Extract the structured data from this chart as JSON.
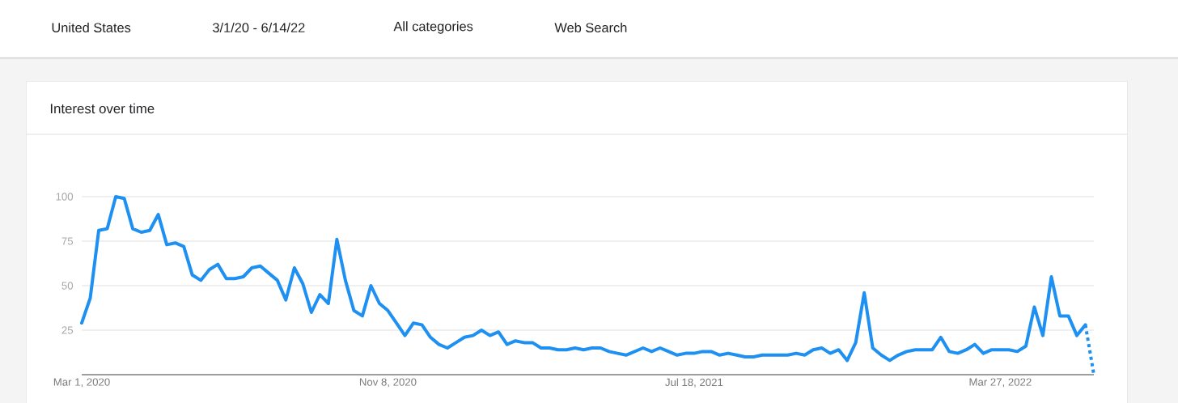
{
  "chart_data": {
    "type": "line",
    "title": "Interest over time",
    "annotations": [
      "United States",
      "3/1/20 - 6/14/22",
      "All categories",
      "Web Search"
    ],
    "x": [
      "2020-03-01",
      "2020-03-08",
      "2020-03-15",
      "2020-03-22",
      "2020-03-29",
      "2020-04-05",
      "2020-04-12",
      "2020-04-19",
      "2020-04-26",
      "2020-05-03",
      "2020-05-10",
      "2020-05-17",
      "2020-05-24",
      "2020-05-31",
      "2020-06-07",
      "2020-06-14",
      "2020-06-21",
      "2020-06-28",
      "2020-07-05",
      "2020-07-12",
      "2020-07-19",
      "2020-07-26",
      "2020-08-02",
      "2020-08-09",
      "2020-08-16",
      "2020-08-23",
      "2020-08-30",
      "2020-09-06",
      "2020-09-13",
      "2020-09-20",
      "2020-09-27",
      "2020-10-04",
      "2020-10-11",
      "2020-10-18",
      "2020-10-25",
      "2020-11-01",
      "2020-11-08",
      "2020-11-15",
      "2020-11-22",
      "2020-11-29",
      "2020-12-06",
      "2020-12-13",
      "2020-12-20",
      "2020-12-27",
      "2021-01-03",
      "2021-01-10",
      "2021-01-17",
      "2021-01-24",
      "2021-01-31",
      "2021-02-07",
      "2021-02-14",
      "2021-02-21",
      "2021-02-28",
      "2021-03-07",
      "2021-03-14",
      "2021-03-21",
      "2021-03-28",
      "2021-04-04",
      "2021-04-11",
      "2021-04-18",
      "2021-04-25",
      "2021-05-02",
      "2021-05-09",
      "2021-05-16",
      "2021-05-23",
      "2021-05-30",
      "2021-06-06",
      "2021-06-13",
      "2021-06-20",
      "2021-06-27",
      "2021-07-04",
      "2021-07-11",
      "2021-07-18",
      "2021-07-25",
      "2021-08-01",
      "2021-08-08",
      "2021-08-15",
      "2021-08-22",
      "2021-08-29",
      "2021-09-05",
      "2021-09-12",
      "2021-09-19",
      "2021-09-26",
      "2021-10-03",
      "2021-10-10",
      "2021-10-17",
      "2021-10-24",
      "2021-10-31",
      "2021-11-07",
      "2021-11-14",
      "2021-11-21",
      "2021-11-28",
      "2021-12-05",
      "2021-12-12",
      "2021-12-19",
      "2021-12-26",
      "2022-01-02",
      "2022-01-09",
      "2022-01-16",
      "2022-01-23",
      "2022-01-30",
      "2022-02-06",
      "2022-02-13",
      "2022-02-20",
      "2022-02-27",
      "2022-03-06",
      "2022-03-13",
      "2022-03-20",
      "2022-03-27",
      "2022-04-03",
      "2022-04-10",
      "2022-04-17",
      "2022-04-24",
      "2022-05-01",
      "2022-05-08",
      "2022-05-15",
      "2022-05-22",
      "2022-05-29",
      "2022-06-05"
    ],
    "series": [
      {
        "color": "#1e90f2",
        "line_style": "solid",
        "values": [
          29,
          43,
          81,
          82,
          100,
          99,
          82,
          80,
          81,
          90,
          73,
          74,
          72,
          56,
          53,
          59,
          62,
          54,
          54,
          55,
          60,
          61,
          57,
          53,
          42,
          60,
          51,
          35,
          45,
          40,
          76,
          53,
          36,
          33,
          50,
          40,
          36,
          29,
          22,
          29,
          28,
          21,
          17,
          15,
          18,
          21,
          22,
          25,
          22,
          24,
          17,
          19,
          18,
          18,
          15,
          15,
          14,
          14,
          15,
          14,
          15,
          15,
          13,
          12,
          11,
          13,
          15,
          13,
          15,
          13,
          11,
          12,
          12,
          13,
          13,
          11,
          12,
          11,
          10,
          10,
          11,
          11,
          11,
          11,
          12,
          11,
          14,
          15,
          12,
          14,
          8,
          18,
          46,
          15,
          11,
          8,
          11,
          13,
          14,
          14,
          14,
          21,
          13,
          12,
          14,
          17,
          12,
          14,
          14,
          14,
          13,
          16,
          38,
          22,
          55,
          33,
          33,
          22,
          28
        ]
      },
      {
        "color": "#1e90f2",
        "line_style": "dotted",
        "x": [
          "2022-06-05",
          "2022-06-12"
        ],
        "values": [
          28,
          0
        ]
      }
    ],
    "xlim": [
      "2020-03-01",
      "2022-06-12"
    ],
    "ylim": [
      0,
      100
    ],
    "xticks": [
      {
        "value": "2020-03-01",
        "label": "Mar 1, 2020"
      },
      {
        "value": "2020-11-08",
        "label": "Nov 8, 2020"
      },
      {
        "value": "2021-07-18",
        "label": "Jul 18, 2021"
      },
      {
        "value": "2022-03-27",
        "label": "Mar 27, 2022"
      }
    ],
    "yticks": [
      25,
      50,
      75,
      100
    ],
    "grid": "y",
    "legend": false
  }
}
